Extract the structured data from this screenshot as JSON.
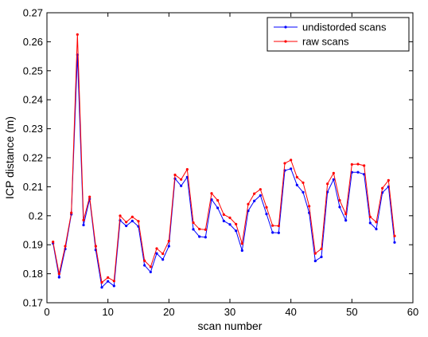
{
  "chart_data": {
    "type": "line",
    "title": "",
    "xlabel": "scan number",
    "ylabel": "ICP distance (m)",
    "xlim": [
      0,
      60
    ],
    "ylim": [
      0.17,
      0.27
    ],
    "xticks": [
      "0",
      "10",
      "20",
      "30",
      "40",
      "50",
      "60"
    ],
    "yticks": [
      "0.17",
      "0.18",
      "0.19",
      "0.2",
      "0.21",
      "0.22",
      "0.23",
      "0.24",
      "0.25",
      "0.26",
      "0.27"
    ],
    "grid": false,
    "legend_position": "top-right",
    "x": [
      1,
      2,
      3,
      4,
      5,
      6,
      7,
      8,
      9,
      10,
      11,
      12,
      13,
      14,
      15,
      16,
      17,
      18,
      19,
      20,
      21,
      22,
      23,
      24,
      25,
      26,
      27,
      28,
      29,
      30,
      31,
      32,
      33,
      34,
      35,
      36,
      37,
      38,
      39,
      40,
      41,
      42,
      43,
      44,
      45,
      46,
      47,
      48,
      49,
      50,
      51,
      52,
      53,
      54,
      55,
      56,
      57
    ],
    "series": [
      {
        "name": "undistorded scans",
        "color": "#0000ff",
        "values": [
          0.1905,
          0.1788,
          0.1885,
          0.2005,
          0.2555,
          0.1968,
          0.2058,
          0.1882,
          0.1753,
          0.1774,
          0.1758,
          0.1984,
          0.1965,
          0.1982,
          0.1963,
          0.1829,
          0.1806,
          0.187,
          0.1849,
          0.1895,
          0.2128,
          0.2103,
          0.2133,
          0.1953,
          0.1928,
          0.1926,
          0.2056,
          0.2027,
          0.1982,
          0.197,
          0.1948,
          0.188,
          0.2017,
          0.2051,
          0.207,
          0.2006,
          0.1942,
          0.1941,
          0.2156,
          0.2162,
          0.2106,
          0.2081,
          0.201,
          0.1844,
          0.1858,
          0.2082,
          0.2125,
          0.203,
          0.1984,
          0.215,
          0.215,
          0.2143,
          0.1975,
          0.1954,
          0.208,
          0.21,
          0.1908
        ]
      },
      {
        "name": "raw scans",
        "color": "#ff0000",
        "values": [
          0.191,
          0.18,
          0.1895,
          0.201,
          0.2625,
          0.1985,
          0.2065,
          0.1895,
          0.177,
          0.1787,
          0.1775,
          0.2,
          0.1978,
          0.1996,
          0.1981,
          0.1845,
          0.1824,
          0.1887,
          0.1869,
          0.1913,
          0.2141,
          0.2125,
          0.216,
          0.1976,
          0.1954,
          0.1952,
          0.2077,
          0.2053,
          0.2004,
          0.1993,
          0.1971,
          0.1904,
          0.204,
          0.2076,
          0.2091,
          0.2029,
          0.1966,
          0.1965,
          0.2181,
          0.2192,
          0.2133,
          0.2114,
          0.2033,
          0.187,
          0.1886,
          0.211,
          0.2147,
          0.2053,
          0.2006,
          0.2177,
          0.2178,
          0.2173,
          0.1996,
          0.1978,
          0.2095,
          0.2122,
          0.193
        ]
      }
    ]
  }
}
